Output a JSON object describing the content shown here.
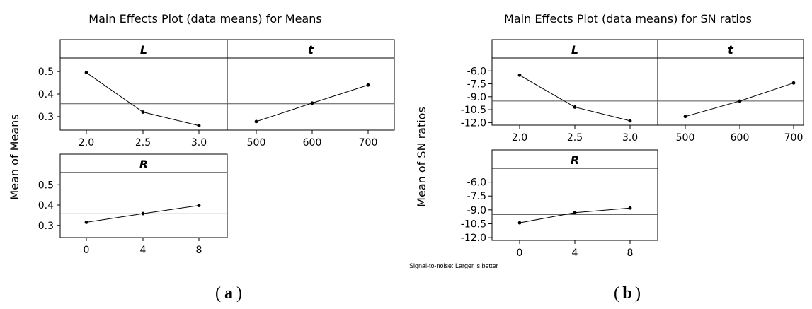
{
  "chart_data": [
    {
      "id": "a",
      "type": "line",
      "title": "Main Effects Plot (data means) for Means",
      "ylabel": "Mean of Means",
      "ylim": [
        0.24,
        0.56
      ],
      "yticks": [
        0.3,
        0.4,
        0.5
      ],
      "ytick_labels": [
        "0.3",
        "0.4",
        "0.5"
      ],
      "reference_mean": 0.357,
      "panels": [
        {
          "factor": "L",
          "x": [
            "2.0",
            "2.5",
            "3.0"
          ],
          "values": [
            0.495,
            0.32,
            0.26
          ]
        },
        {
          "factor": "t",
          "x": [
            "500",
            "600",
            "700"
          ],
          "values": [
            0.278,
            0.36,
            0.44
          ]
        },
        {
          "factor": "R",
          "x": [
            "0",
            "4",
            "8"
          ],
          "values": [
            0.315,
            0.358,
            0.398
          ]
        }
      ],
      "caption": "a"
    },
    {
      "id": "b",
      "type": "line",
      "title": "Main Effects Plot (data means) for SN ratios",
      "ylabel": "Mean of SN ratios",
      "ylim": [
        -12.3,
        -4.5
      ],
      "yticks": [
        -6.0,
        -7.5,
        -9.0,
        -10.5,
        -12.0
      ],
      "ytick_labels": [
        "-6.0",
        "-7.5",
        "-9.0",
        "-10.5",
        "-12.0"
      ],
      "reference_mean": -9.5,
      "panels": [
        {
          "factor": "L",
          "x": [
            "2.0",
            "2.5",
            "3.0"
          ],
          "values": [
            -6.5,
            -10.2,
            -11.8
          ]
        },
        {
          "factor": "t",
          "x": [
            "500",
            "600",
            "700"
          ],
          "values": [
            -11.3,
            -9.5,
            -7.4
          ]
        },
        {
          "factor": "R",
          "x": [
            "0",
            "4",
            "8"
          ],
          "values": [
            -10.4,
            -9.3,
            -8.8
          ]
        }
      ],
      "footnote": "Signal-to-noise: Larger is better",
      "caption": "b"
    }
  ]
}
